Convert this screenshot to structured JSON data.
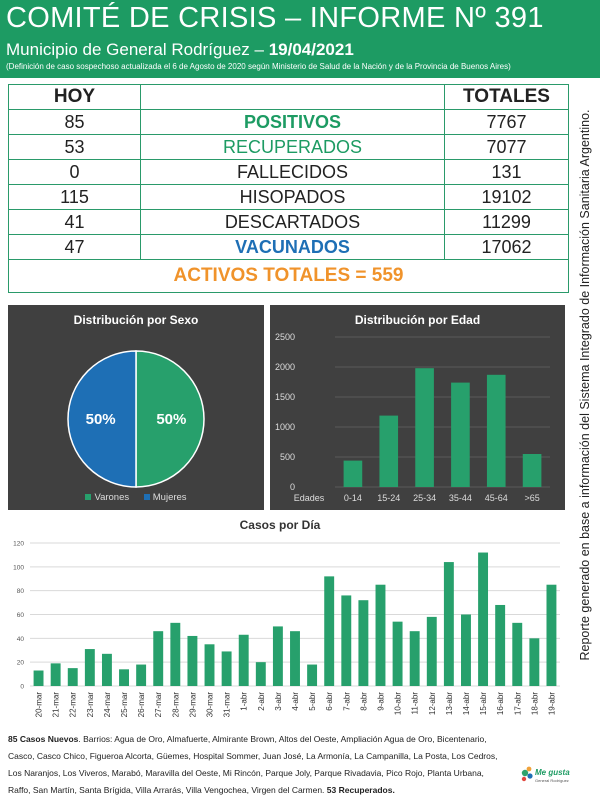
{
  "header": {
    "title": "COMITÉ DE CRISIS – INFORME Nº 391",
    "subtitle_prefix": "Municipio de General Rodríguez – ",
    "date": "19/04/2021",
    "note": "(Definición de caso sospechoso actualizada el 6 de Agosto de 2020 según Ministerio de Salud de la Nación y de la Provincia de Buenos Aires)"
  },
  "stats": {
    "col_hoy": "HOY",
    "col_totales": "TOTALES",
    "rows": [
      {
        "hoy": "85",
        "label": "POSITIVOS",
        "total": "7767"
      },
      {
        "hoy": "53",
        "label": "RECUPERADOS",
        "total": "7077"
      },
      {
        "hoy": "0",
        "label": "FALLECIDOS",
        "total": "131"
      },
      {
        "hoy": "115",
        "label": "HISOPADOS",
        "total": "19102"
      },
      {
        "hoy": "41",
        "label": "DESCARTADOS",
        "total": "11299"
      },
      {
        "hoy": "47",
        "label": "VACUNADOS",
        "total": "17062"
      }
    ],
    "activos": "ACTIVOS TOTALES = 559"
  },
  "side_note": "Reporte generado en base a información del Sistema Integrado de Información Sanitaria Argentino.",
  "colors": {
    "green": "#1d9b63",
    "blue": "#1e6fb5",
    "orange": "#f0932b",
    "panel": "#404040",
    "bar_green": "#27a06c"
  },
  "chart_data": [
    {
      "type": "pie",
      "title": "Distribución  por Sexo",
      "slices": [
        {
          "name": "Varones",
          "value": 50,
          "label": "50%",
          "color": "#27a06c"
        },
        {
          "name": "Mujeres",
          "value": 50,
          "label": "50%",
          "color": "#1e6fb5"
        }
      ],
      "legend": "bottom"
    },
    {
      "type": "bar",
      "title": "Distribución  por Edad",
      "xlabel": "Edades",
      "categories": [
        "0-14",
        "15-24",
        "25-34",
        "35-44",
        "45-64",
        ">65"
      ],
      "values": [
        440,
        1190,
        1980,
        1740,
        1870,
        550
      ],
      "ylim": [
        0,
        2500
      ],
      "yticks": [
        "0",
        "500",
        "1000",
        "1500",
        "2000",
        "2500"
      ],
      "grid": true
    },
    {
      "type": "bar",
      "title": "Casos por Día",
      "categories": [
        "20-mar",
        "21-mar",
        "22-mar",
        "23-mar",
        "24-mar",
        "25-mar",
        "26-mar",
        "27-mar",
        "28-mar",
        "29-mar",
        "30-mar",
        "31-mar",
        "1-abr",
        "2-abr",
        "3-abr",
        "4-abr",
        "5-abr",
        "6-abr",
        "7-abr",
        "8-abr",
        "9-abr",
        "10-abr",
        "11-abr",
        "12-abr",
        "13-abr",
        "14-abr",
        "15-abr",
        "16-abr",
        "17-abr",
        "18-abr",
        "19-abr"
      ],
      "values": [
        13,
        19,
        15,
        31,
        27,
        14,
        18,
        46,
        53,
        42,
        35,
        29,
        43,
        20,
        50,
        46,
        18,
        92,
        76,
        72,
        85,
        54,
        46,
        58,
        104,
        60,
        112,
        68,
        53,
        40,
        85
      ],
      "ylim": [
        0,
        120
      ],
      "yticks": [
        "0",
        "20",
        "40",
        "60",
        "80",
        "100",
        "120"
      ],
      "grid": true
    }
  ],
  "footer": {
    "new_cases": "85 Casos Nuevos",
    "barrios": ". Barrios: Agua de Oro, Almafuerte, Almirante Brown, Altos del Oeste, Ampliación Agua de Oro, Bicentenario, Casco, Casco Chico, Figueroa Alcorta, Güemes, Hospital Sommer, Juan José, La Armonía, La Campanilla, La Posta, Los Cedros, Los Naranjos, Los Viveros, Marabó, Maravilla del Oeste, Mi Rincón, Parque Joly, Parque Rivadavia, Pico Rojo, Planta Urbana, Raffo, San Martín, Santa Brígida, Villa Arrarás, Villa Vengochea, Virgen del Carmen. ",
    "recovered": "53 Recuperados."
  },
  "logo": {
    "line1": "Me gusta",
    "line2": "General Rodríguez"
  }
}
